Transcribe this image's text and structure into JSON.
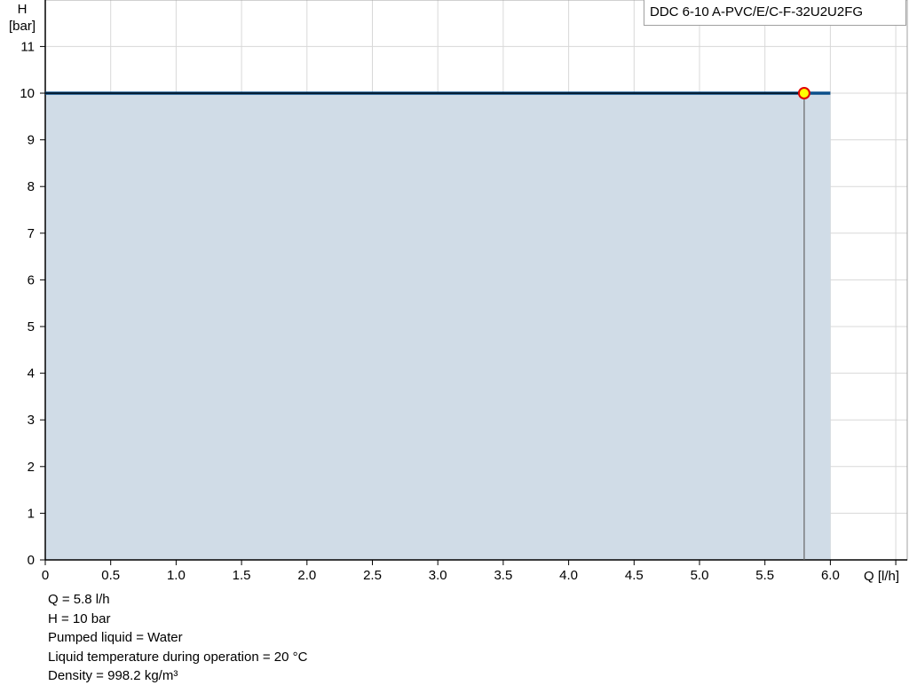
{
  "chart_data": {
    "type": "area",
    "title": "",
    "xlabel": "Q [l/h]",
    "ylabel_line1": "H",
    "ylabel_line2": "[bar]",
    "xlim": [
      0,
      6.5
    ],
    "ylim": [
      0,
      12
    ],
    "grid": true,
    "x_ticks": [
      "0",
      "0.5",
      "1.0",
      "1.5",
      "2.0",
      "2.5",
      "3.0",
      "3.5",
      "4.0",
      "4.5",
      "5.0",
      "5.5",
      "6.0"
    ],
    "x_tick_values": [
      0,
      0.5,
      1,
      1.5,
      2,
      2.5,
      3,
      3.5,
      4,
      4.5,
      5,
      5.5,
      6
    ],
    "y_ticks": [
      "0",
      "1",
      "2",
      "3",
      "4",
      "5",
      "6",
      "7",
      "8",
      "9",
      "10",
      "11"
    ],
    "y_tick_values": [
      0,
      1,
      2,
      3,
      4,
      5,
      6,
      7,
      8,
      9,
      10,
      11
    ],
    "series": [
      {
        "name": "DDC 6-10 A-PVC/E/C-F-32U2U2FG",
        "x": [
          0,
          6.0
        ],
        "y": [
          10,
          10
        ]
      }
    ],
    "operating_point": {
      "x": 5.8,
      "y": 10
    },
    "legend": "top-right",
    "colors": {
      "curve": "#0b4f8a",
      "area": "#d0dce7",
      "operating_point_fill": "#ffff00",
      "operating_point_stroke": "#e00000",
      "grid": "#d8d8d8"
    }
  },
  "info": [
    "Q = 5.8 l/h",
    "H = 10 bar",
    "Pumped liquid = Water",
    "Liquid temperature during operation = 20 °C",
    "Density = 998.2 kg/m³"
  ]
}
